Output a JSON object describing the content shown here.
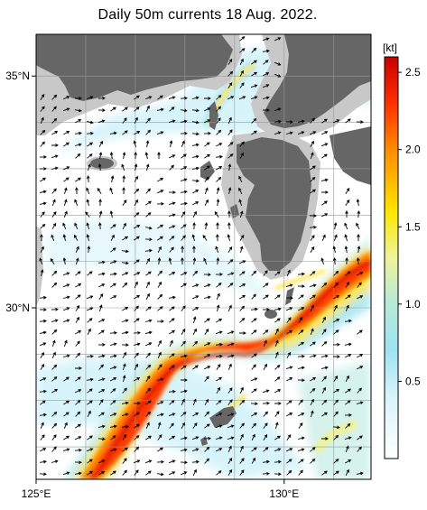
{
  "title": "Daily 50m currents 18 Aug. 2022.",
  "map": {
    "lon_range": [
      125,
      131.75
    ],
    "lat_range": [
      26.3,
      35.9
    ],
    "grid_step_deg": 1,
    "x_ticks": [
      {
        "lon": 125,
        "label": "125°E"
      },
      {
        "lon": 130,
        "label": "130°E"
      }
    ],
    "y_ticks": [
      {
        "lat": 35,
        "label": "35°N"
      },
      {
        "lat": 30,
        "label": "30°N"
      }
    ],
    "land_color": "#666666",
    "shallow_color": "#c8c8c8",
    "grid_color": "#999999"
  },
  "colorbar": {
    "unit": "[kt]",
    "ticks": [
      "0.5",
      "1.0",
      "1.5",
      "2.0",
      "2.5"
    ],
    "tick_values": [
      0.5,
      1.0,
      1.5,
      2.0,
      2.5
    ],
    "range": [
      0,
      2.6
    ],
    "stops": [
      {
        "v": 0.0,
        "c": "#ffffff"
      },
      {
        "v": 0.4,
        "c": "#d8f4fb"
      },
      {
        "v": 0.7,
        "c": "#9ee3f2"
      },
      {
        "v": 1.0,
        "c": "#b6ead8"
      },
      {
        "v": 1.3,
        "c": "#eef39a"
      },
      {
        "v": 1.6,
        "c": "#ffe600"
      },
      {
        "v": 2.0,
        "c": "#ff8c00"
      },
      {
        "v": 2.3,
        "c": "#ff3000"
      },
      {
        "v": 2.6,
        "c": "#c80000"
      }
    ]
  }
}
